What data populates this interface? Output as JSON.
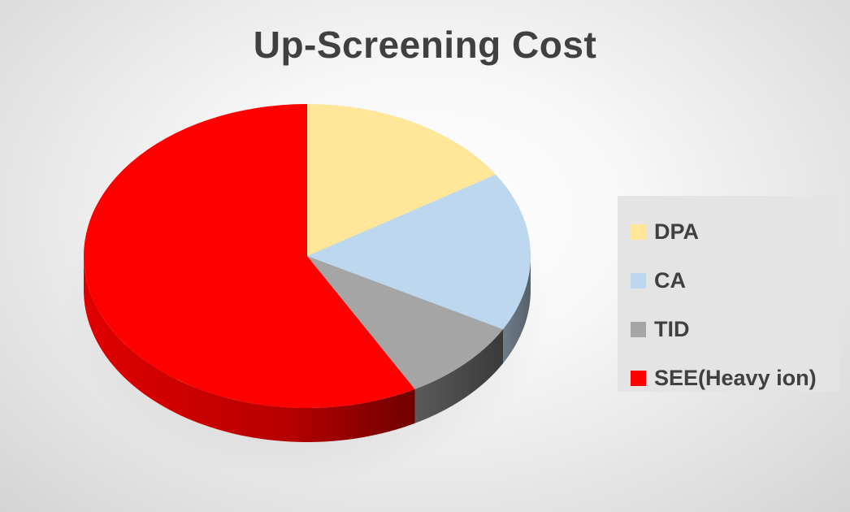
{
  "chart_data": {
    "type": "pie",
    "title": "Up-Screening Cost",
    "categories": [
      "DPA",
      "CA",
      "TID",
      "SEE(Heavy ion)"
    ],
    "values": [
      16,
      17,
      9,
      58
    ],
    "colors": [
      "#FFE699",
      "#BDD7EE",
      "#A5A5A5",
      "#FF0000"
    ],
    "style": "3d-pie",
    "legend_position": "right"
  }
}
